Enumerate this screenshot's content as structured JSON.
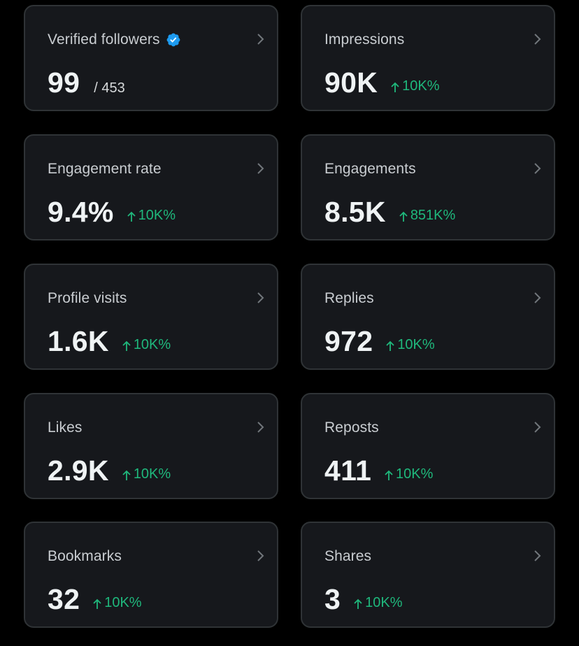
{
  "metrics": [
    {
      "id": "verified-followers",
      "label": "Verified followers",
      "value": "99",
      "total": "/ 453",
      "change": null,
      "verified_icon": "verified-badge-icon"
    },
    {
      "id": "impressions",
      "label": "Impressions",
      "value": "90K",
      "change": "10K%"
    },
    {
      "id": "engagement-rate",
      "label": "Engagement rate",
      "value": "9.4%",
      "change": "10K%"
    },
    {
      "id": "engagements",
      "label": "Engagements",
      "value": "8.5K",
      "change": "851K%"
    },
    {
      "id": "profile-visits",
      "label": "Profile visits",
      "value": "1.6K",
      "change": "10K%"
    },
    {
      "id": "replies",
      "label": "Replies",
      "value": "972",
      "change": "10K%"
    },
    {
      "id": "likes",
      "label": "Likes",
      "value": "2.9K",
      "change": "10K%"
    },
    {
      "id": "reposts",
      "label": "Reposts",
      "value": "411",
      "change": "10K%"
    },
    {
      "id": "bookmarks",
      "label": "Bookmarks",
      "value": "32",
      "change": "10K%"
    },
    {
      "id": "shares",
      "label": "Shares",
      "value": "3",
      "change": "10K%"
    }
  ],
  "colors": {
    "background": "#000000",
    "card": "#16181c",
    "border": "#2f3336",
    "positive": "#1fb87c",
    "verified": "#1d9bf0"
  }
}
